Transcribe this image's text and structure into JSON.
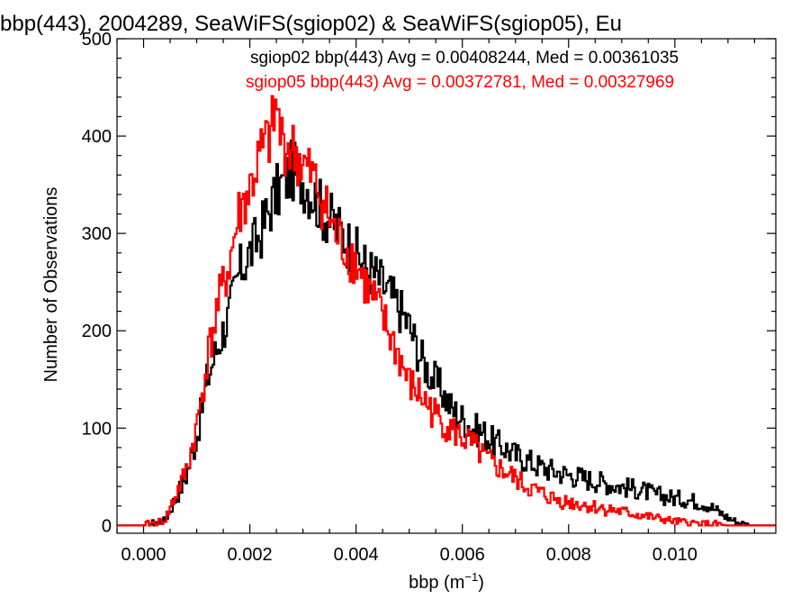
{
  "chart_data": {
    "type": "line",
    "title": "bbp(443), 2004289, SeaWiFS(sgiop02) & SeaWiFS(sgiop05), Eu",
    "xlabel": "bbp (m",
    "xlabel_sup": "−1",
    "xlabel_close": ")",
    "ylabel": "Number of Observations",
    "xlim": [
      -0.0005,
      0.0119
    ],
    "ylim": [
      -8,
      500
    ],
    "x_ticks": [
      0.0,
      0.002,
      0.004,
      0.006,
      0.008,
      0.01
    ],
    "x_tick_labels": [
      "0.000",
      "0.002",
      "0.004",
      "0.006",
      "0.008",
      "0.010"
    ],
    "y_ticks": [
      0,
      100,
      200,
      300,
      400,
      500
    ],
    "y_tick_labels": [
      "0",
      "100",
      "200",
      "300",
      "400",
      "500"
    ],
    "legend": [
      {
        "text": "sgiop02 bbp(443) Avg = 0.00408244, Med = 0.00361035",
        "color": "#000000"
      },
      {
        "text": "sgiop05 bbp(443) Avg = 0.00372781, Med = 0.00327969",
        "color": "#ff0000"
      }
    ],
    "series": [
      {
        "name": "sgiop02",
        "color": "#000000",
        "x": [
          0.0,
          0.0004,
          0.0008,
          0.001,
          0.0012,
          0.0014,
          0.0016,
          0.0018,
          0.002,
          0.0022,
          0.0024,
          0.0026,
          0.0028,
          0.003,
          0.0032,
          0.0034,
          0.0036,
          0.0038,
          0.004,
          0.0042,
          0.0044,
          0.0046,
          0.0048,
          0.005,
          0.0052,
          0.0054,
          0.0056,
          0.0058,
          0.006,
          0.0062,
          0.0064,
          0.0066,
          0.0068,
          0.007,
          0.0072,
          0.0074,
          0.0076,
          0.0078,
          0.008,
          0.0082,
          0.0084,
          0.0086,
          0.0088,
          0.009,
          0.0092,
          0.0094,
          0.0096,
          0.0098,
          0.01,
          0.0102,
          0.0104,
          0.0106,
          0.0108,
          0.011,
          0.0112,
          0.0114
        ],
        "y": [
          0,
          5,
          50,
          90,
          150,
          185,
          215,
          260,
          280,
          300,
          330,
          350,
          365,
          355,
          340,
          320,
          310,
          295,
          280,
          265,
          255,
          240,
          225,
          205,
          175,
          155,
          140,
          120,
          110,
          100,
          95,
          85,
          80,
          72,
          68,
          62,
          58,
          55,
          52,
          50,
          47,
          45,
          42,
          40,
          38,
          36,
          32,
          30,
          28,
          27,
          25,
          22,
          15,
          8,
          3,
          0
        ]
      },
      {
        "name": "sgiop05",
        "color": "#ff0000",
        "x": [
          0.0,
          0.0004,
          0.0008,
          0.001,
          0.0012,
          0.0014,
          0.0016,
          0.0018,
          0.002,
          0.0022,
          0.0024,
          0.0025,
          0.0026,
          0.0028,
          0.003,
          0.0032,
          0.0034,
          0.0036,
          0.0038,
          0.004,
          0.0042,
          0.0044,
          0.0046,
          0.0048,
          0.005,
          0.0052,
          0.0054,
          0.0056,
          0.0058,
          0.006,
          0.0062,
          0.0064,
          0.0066,
          0.0068,
          0.007,
          0.0072,
          0.0074,
          0.0076,
          0.0078,
          0.008,
          0.0082,
          0.0084,
          0.0086,
          0.0088,
          0.009,
          0.0092,
          0.0094,
          0.0096,
          0.0098,
          0.01,
          0.0102,
          0.0104,
          0.0106,
          0.0108,
          0.011
        ],
        "y": [
          0,
          5,
          55,
          100,
          170,
          225,
          265,
          320,
          345,
          380,
          400,
          430,
          395,
          385,
          370,
          355,
          330,
          300,
          285,
          270,
          245,
          225,
          200,
          175,
          145,
          135,
          120,
          108,
          98,
          90,
          82,
          70,
          62,
          55,
          48,
          40,
          35,
          30,
          26,
          24,
          22,
          20,
          18,
          16,
          14,
          12,
          10,
          8,
          6,
          4,
          3,
          2,
          1,
          1,
          0
        ]
      }
    ]
  }
}
